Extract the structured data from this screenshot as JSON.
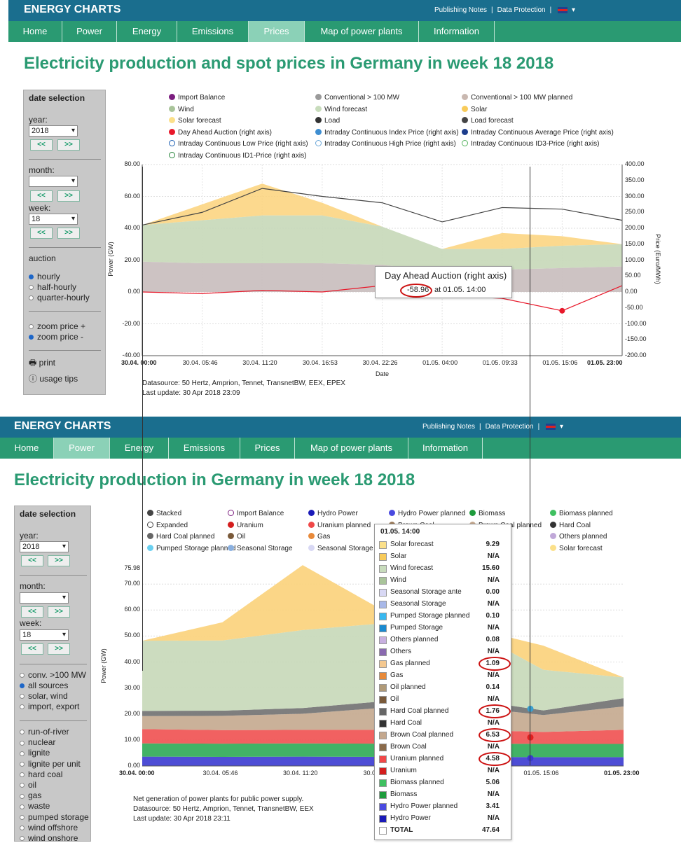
{
  "brand": "ENERGY CHARTS",
  "toplinks": [
    "Publishing Notes",
    "|",
    "Data Protection",
    "|"
  ],
  "nav_top": [
    {
      "label": "Home"
    },
    {
      "label": "Power"
    },
    {
      "label": "Energy"
    },
    {
      "label": "Emissions"
    },
    {
      "label": "Prices",
      "active": true
    },
    {
      "label": "Map of power plants"
    },
    {
      "label": "Information"
    }
  ],
  "nav_bottom": [
    {
      "label": "Home"
    },
    {
      "label": "Power",
      "active": true
    },
    {
      "label": "Energy"
    },
    {
      "label": "Emissions"
    },
    {
      "label": "Prices"
    },
    {
      "label": "Map of power plants"
    },
    {
      "label": "Information"
    }
  ],
  "top": {
    "title": "Electricity production and spot prices in Germany in week 18 2018",
    "panel": {
      "title": "date selection",
      "year_label": "year:",
      "year": "2018",
      "month_label": "month:",
      "month": "",
      "week_label": "week:",
      "week": "18",
      "prev": "<<",
      "next": ">>",
      "auction_label": "auction",
      "auction": [
        "hourly",
        "half-hourly",
        "quarter-hourly"
      ],
      "zoom": [
        "zoom price +",
        "zoom price -"
      ],
      "print": "print",
      "tips": "usage tips"
    },
    "legend": [
      {
        "label": "Import Balance",
        "color": "#7b1d7f"
      },
      {
        "label": "Conventional > 100 MW",
        "color": "#9a9a9a"
      },
      {
        "label": "Conventional > 100 MW planned",
        "color": "#c9b8b0"
      },
      {
        "label": "Wind",
        "color": "#a9c49a"
      },
      {
        "label": "Wind forecast",
        "color": "#c8dcbc"
      },
      {
        "label": "Solar",
        "color": "#f8cb5a"
      },
      {
        "label": "Solar forecast",
        "color": "#fbe08a"
      },
      {
        "label": "Load",
        "color": "#333333"
      },
      {
        "label": "Load forecast",
        "color": "#444444"
      },
      {
        "label": "Day Ahead Auction (right axis)",
        "color": "#e8182a"
      },
      {
        "label": "Intraday Continuous Index Price (right axis)",
        "color": "#3e8ed1"
      },
      {
        "label": "Intraday Continuous Average Price (right axis)",
        "color": "#1c3c8c"
      },
      {
        "label": "Intraday Continuous Low Price (right axis)",
        "color": "#1d5fb3",
        "ring": true
      },
      {
        "label": "Intraday Continuous High Price (right axis)",
        "color": "#6aa7d8",
        "ring": true
      },
      {
        "label": "Intraday Continuous ID3-Price (right axis)",
        "color": "#55b35e",
        "ring": true
      },
      {
        "label": "Intraday Continuous ID1-Price (right axis)",
        "color": "#26843a",
        "ring": true
      }
    ],
    "y_left": [
      "80.00",
      "60.00",
      "40.00",
      "20.00",
      "0.00",
      "-20.00",
      "-40.00"
    ],
    "y_right": [
      "400.00",
      "350.00",
      "300.00",
      "250.00",
      "200.00",
      "150.00",
      "100.00",
      "50.00",
      "0.00",
      "-50.00",
      "-100.00",
      "-150.00",
      "-200.00"
    ],
    "y_title": "Power (GW)",
    "y2_title": "Price (Euro/MWh)",
    "x_ticks": [
      "30.04. 00:00",
      "30.04. 05:46",
      "30.04. 11:20",
      "30.04. 16:53",
      "30.04. 22:26",
      "01.05. 04:00",
      "01.05. 09:33",
      "01.05. 15:06",
      "01.05. 23:00"
    ],
    "x_title": "Date",
    "tooltip_title": "Day Ahead Auction (right axis)",
    "tooltip_value": "-58.96",
    "tooltip_at": "at 01.05. 14:00",
    "source": "Datasource: 50 Hertz, Amprion, Tennet, TransnetBW, EEX, EPEX",
    "update": "Last update: 30 Apr 2018 23:09"
  },
  "bottom": {
    "title": "Electricity production in Germany in week 18 2018",
    "panel": {
      "title": "date selection",
      "year_label": "year:",
      "year": "2018",
      "month_label": "month:",
      "month": "",
      "week_label": "week:",
      "week": "18",
      "prev": "<<",
      "next": ">>",
      "sources": [
        "conv. >100 MW",
        "all sources",
        "solar, wind",
        "import, export"
      ],
      "types": [
        "run-of-river",
        "nuclear",
        "lignite",
        "lignite per unit",
        "hard coal",
        "oil",
        "gas",
        "waste",
        "pumped storage",
        "wind offshore",
        "wind onshore"
      ]
    },
    "legend": [
      {
        "label": "Stacked",
        "color": "#444444"
      },
      {
        "label": "Import Balance",
        "color": "#7b1d7f",
        "ring": true
      },
      {
        "label": "Hydro Power",
        "color": "#1a1ab8"
      },
      {
        "label": "Hydro Power planned",
        "color": "#4a4ae0"
      },
      {
        "label": "Biomass",
        "color": "#1e9b3c"
      },
      {
        "label": "Biomass planned",
        "color": "#3fc060"
      },
      {
        "label": "Expanded",
        "color": "#444444",
        "ring": true
      },
      {
        "label": "Uranium",
        "color": "#d41e1e"
      },
      {
        "label": "Uranium planned",
        "color": "#f04848"
      },
      {
        "label": "Brown Coal",
        "color": "#9a7a5a"
      },
      {
        "label": "Brown Coal planned",
        "color": "#c4a88e"
      },
      {
        "label": "Hard Coal",
        "color": "#333333"
      },
      {
        "label": "Hard Coal planned",
        "color": "#666666"
      },
      {
        "label": "Oil",
        "color": "#7a5a3a"
      },
      {
        "label": "Gas",
        "color": "#e88a3a"
      },
      {
        "label": "Gas planned",
        "color": "#f4b078"
      },
      {
        "label": "Others",
        "color": "#8a6ab0"
      },
      {
        "label": "Others planned",
        "color": "#c0a8d8"
      },
      {
        "label": "Pumped Storage planned",
        "color": "#6ad0f0"
      },
      {
        "label": "Seasonal Storage",
        "color": "#8ab0e0"
      },
      {
        "label": "Seasonal Storage ante",
        "color": "#d8d8f4"
      },
      {
        "label": "Wind",
        "color": "#a9c49a"
      },
      {
        "label": "Solar",
        "color": "#f8cb5a"
      },
      {
        "label": "Solar forecast",
        "color": "#fbe08a"
      }
    ],
    "y_left": [
      "75.98",
      "70.00",
      "60.00",
      "50.00",
      "40.00",
      "30.00",
      "20.00",
      "10.00",
      "0.00"
    ],
    "y_title": "Power (GW)",
    "x_ticks": [
      "30.04. 00:00",
      "30.04. 05:46",
      "30.04. 11:20",
      "30.04. 16:53",
      "30.04.",
      "01.05. 15:06",
      "01.05. 23:00"
    ],
    "tooltip": {
      "header": "01.05. 14:00",
      "rows": [
        {
          "name": "Solar forecast",
          "value": "9.29",
          "color": "#fbe08a"
        },
        {
          "name": "Solar",
          "value": "N/A",
          "color": "#f8cb5a"
        },
        {
          "name": "Wind forecast",
          "value": "15.60",
          "color": "#c8dcbc"
        },
        {
          "name": "Wind",
          "value": "N/A",
          "color": "#a9c49a"
        },
        {
          "name": "Seasonal Storage ante",
          "value": "0.00",
          "color": "#d8d8f4"
        },
        {
          "name": "Seasonal Storage",
          "value": "N/A",
          "color": "#a8b8e8"
        },
        {
          "name": "Pumped Storage planned",
          "value": "0.10",
          "color": "#38b8f0"
        },
        {
          "name": "Pumped Storage",
          "value": "N/A",
          "color": "#1a8ad0"
        },
        {
          "name": "Others planned",
          "value": "0.08",
          "color": "#c8b0e0"
        },
        {
          "name": "Others",
          "value": "N/A",
          "color": "#8a6ab0"
        },
        {
          "name": "Gas planned",
          "value": "1.09",
          "color": "#f4c890",
          "circled": true
        },
        {
          "name": "Gas",
          "value": "N/A",
          "color": "#e88a3a"
        },
        {
          "name": "Oil planned",
          "value": "0.14",
          "color": "#b09a78"
        },
        {
          "name": "Oil",
          "value": "N/A",
          "color": "#7a5a3a"
        },
        {
          "name": "Hard Coal planned",
          "value": "1.76",
          "color": "#666666",
          "circled": true
        },
        {
          "name": "Hard Coal",
          "value": "N/A",
          "color": "#333333"
        },
        {
          "name": "Brown Coal planned",
          "value": "6.53",
          "color": "#c4a88e",
          "circled": true
        },
        {
          "name": "Brown Coal",
          "value": "N/A",
          "color": "#8a6a4a"
        },
        {
          "name": "Uranium planned",
          "value": "4.58",
          "color": "#f04848",
          "circled": true
        },
        {
          "name": "Uranium",
          "value": "N/A",
          "color": "#d41e1e"
        },
        {
          "name": "Biomass planned",
          "value": "5.06",
          "color": "#3fc060"
        },
        {
          "name": "Biomass",
          "value": "N/A",
          "color": "#1e9b3c"
        },
        {
          "name": "Hydro Power planned",
          "value": "3.41",
          "color": "#4a4ae0"
        },
        {
          "name": "Hydro Power",
          "value": "N/A",
          "color": "#1a1ab8"
        },
        {
          "name": "TOTAL",
          "value": "47.64",
          "color": "#ffffff",
          "bold": true
        }
      ]
    },
    "note": "Net generation of power plants for public power supply.",
    "source": "Datasource: 50 Hertz, Amprion, Tennet, TransnetBW, EEX",
    "update": "Last update: 30 Apr 2018 23:11"
  },
  "chart_data": [
    {
      "type": "area",
      "title": "Electricity production and spot prices in Germany in week 18 2018",
      "xlabel": "Date",
      "ylabel": "Power (GW)",
      "y2label": "Price (Euro/MWh)",
      "ylim": [
        -40,
        80
      ],
      "y2lim": [
        -200,
        400
      ],
      "x": [
        "30.04. 00:00",
        "30.04. 05:46",
        "30.04. 11:20",
        "30.04. 16:53",
        "30.04. 22:26",
        "01.05. 04:00",
        "01.05. 09:33",
        "01.05. 15:06",
        "01.05. 23:00"
      ],
      "series": [
        {
          "name": "Conventional > 100 MW",
          "values": [
            19,
            18,
            18,
            18,
            17,
            13,
            14,
            15,
            16
          ]
        },
        {
          "name": "Wind",
          "values": [
            23,
            27,
            30,
            30,
            24,
            14,
            13,
            14,
            14
          ]
        },
        {
          "name": "Solar",
          "values": [
            0,
            10,
            20,
            8,
            0,
            0,
            10,
            6,
            0
          ]
        },
        {
          "name": "Load",
          "values": [
            42,
            50,
            65,
            60,
            56,
            44,
            53,
            52,
            45
          ]
        },
        {
          "name": "Day Ahead Auction (right axis)",
          "values": [
            0,
            -5,
            5,
            0,
            20,
            -10,
            -20,
            -58.96,
            20
          ]
        }
      ]
    },
    {
      "type": "area",
      "title": "Electricity production in Germany in week 18 2018",
      "ylabel": "Power (GW)",
      "ylim": [
        0,
        75.98
      ],
      "x": [
        "30.04. 00:00",
        "30.04. 05:46",
        "30.04. 11:20",
        "30.04. 16:53",
        "30.04. 22:26",
        "01.05. 15:06",
        "01.05. 23:00"
      ],
      "series": [
        {
          "name": "Hydro Power planned",
          "values": [
            3.6,
            3.5,
            3.6,
            3.5,
            3.5,
            3.4,
            3.4
          ]
        },
        {
          "name": "Biomass planned",
          "values": [
            5.1,
            5.1,
            5.1,
            5.1,
            5.1,
            5.1,
            5.1
          ]
        },
        {
          "name": "Uranium planned",
          "values": [
            5.5,
            5.2,
            5.2,
            5.3,
            5.3,
            4.6,
            5.4
          ]
        },
        {
          "name": "Brown Coal planned",
          "values": [
            5.0,
            5.5,
            6.2,
            8.5,
            9.0,
            6.5,
            9.0
          ]
        },
        {
          "name": "Hard Coal planned",
          "values": [
            2.0,
            2.0,
            2.2,
            2.5,
            3.0,
            1.8,
            3.2
          ]
        },
        {
          "name": "Wind forecast",
          "values": [
            27,
            27,
            30,
            30,
            28,
            15.6,
            8
          ]
        },
        {
          "name": "Solar forecast",
          "values": [
            0,
            7,
            25,
            5,
            0,
            9.3,
            0
          ]
        }
      ]
    }
  ]
}
